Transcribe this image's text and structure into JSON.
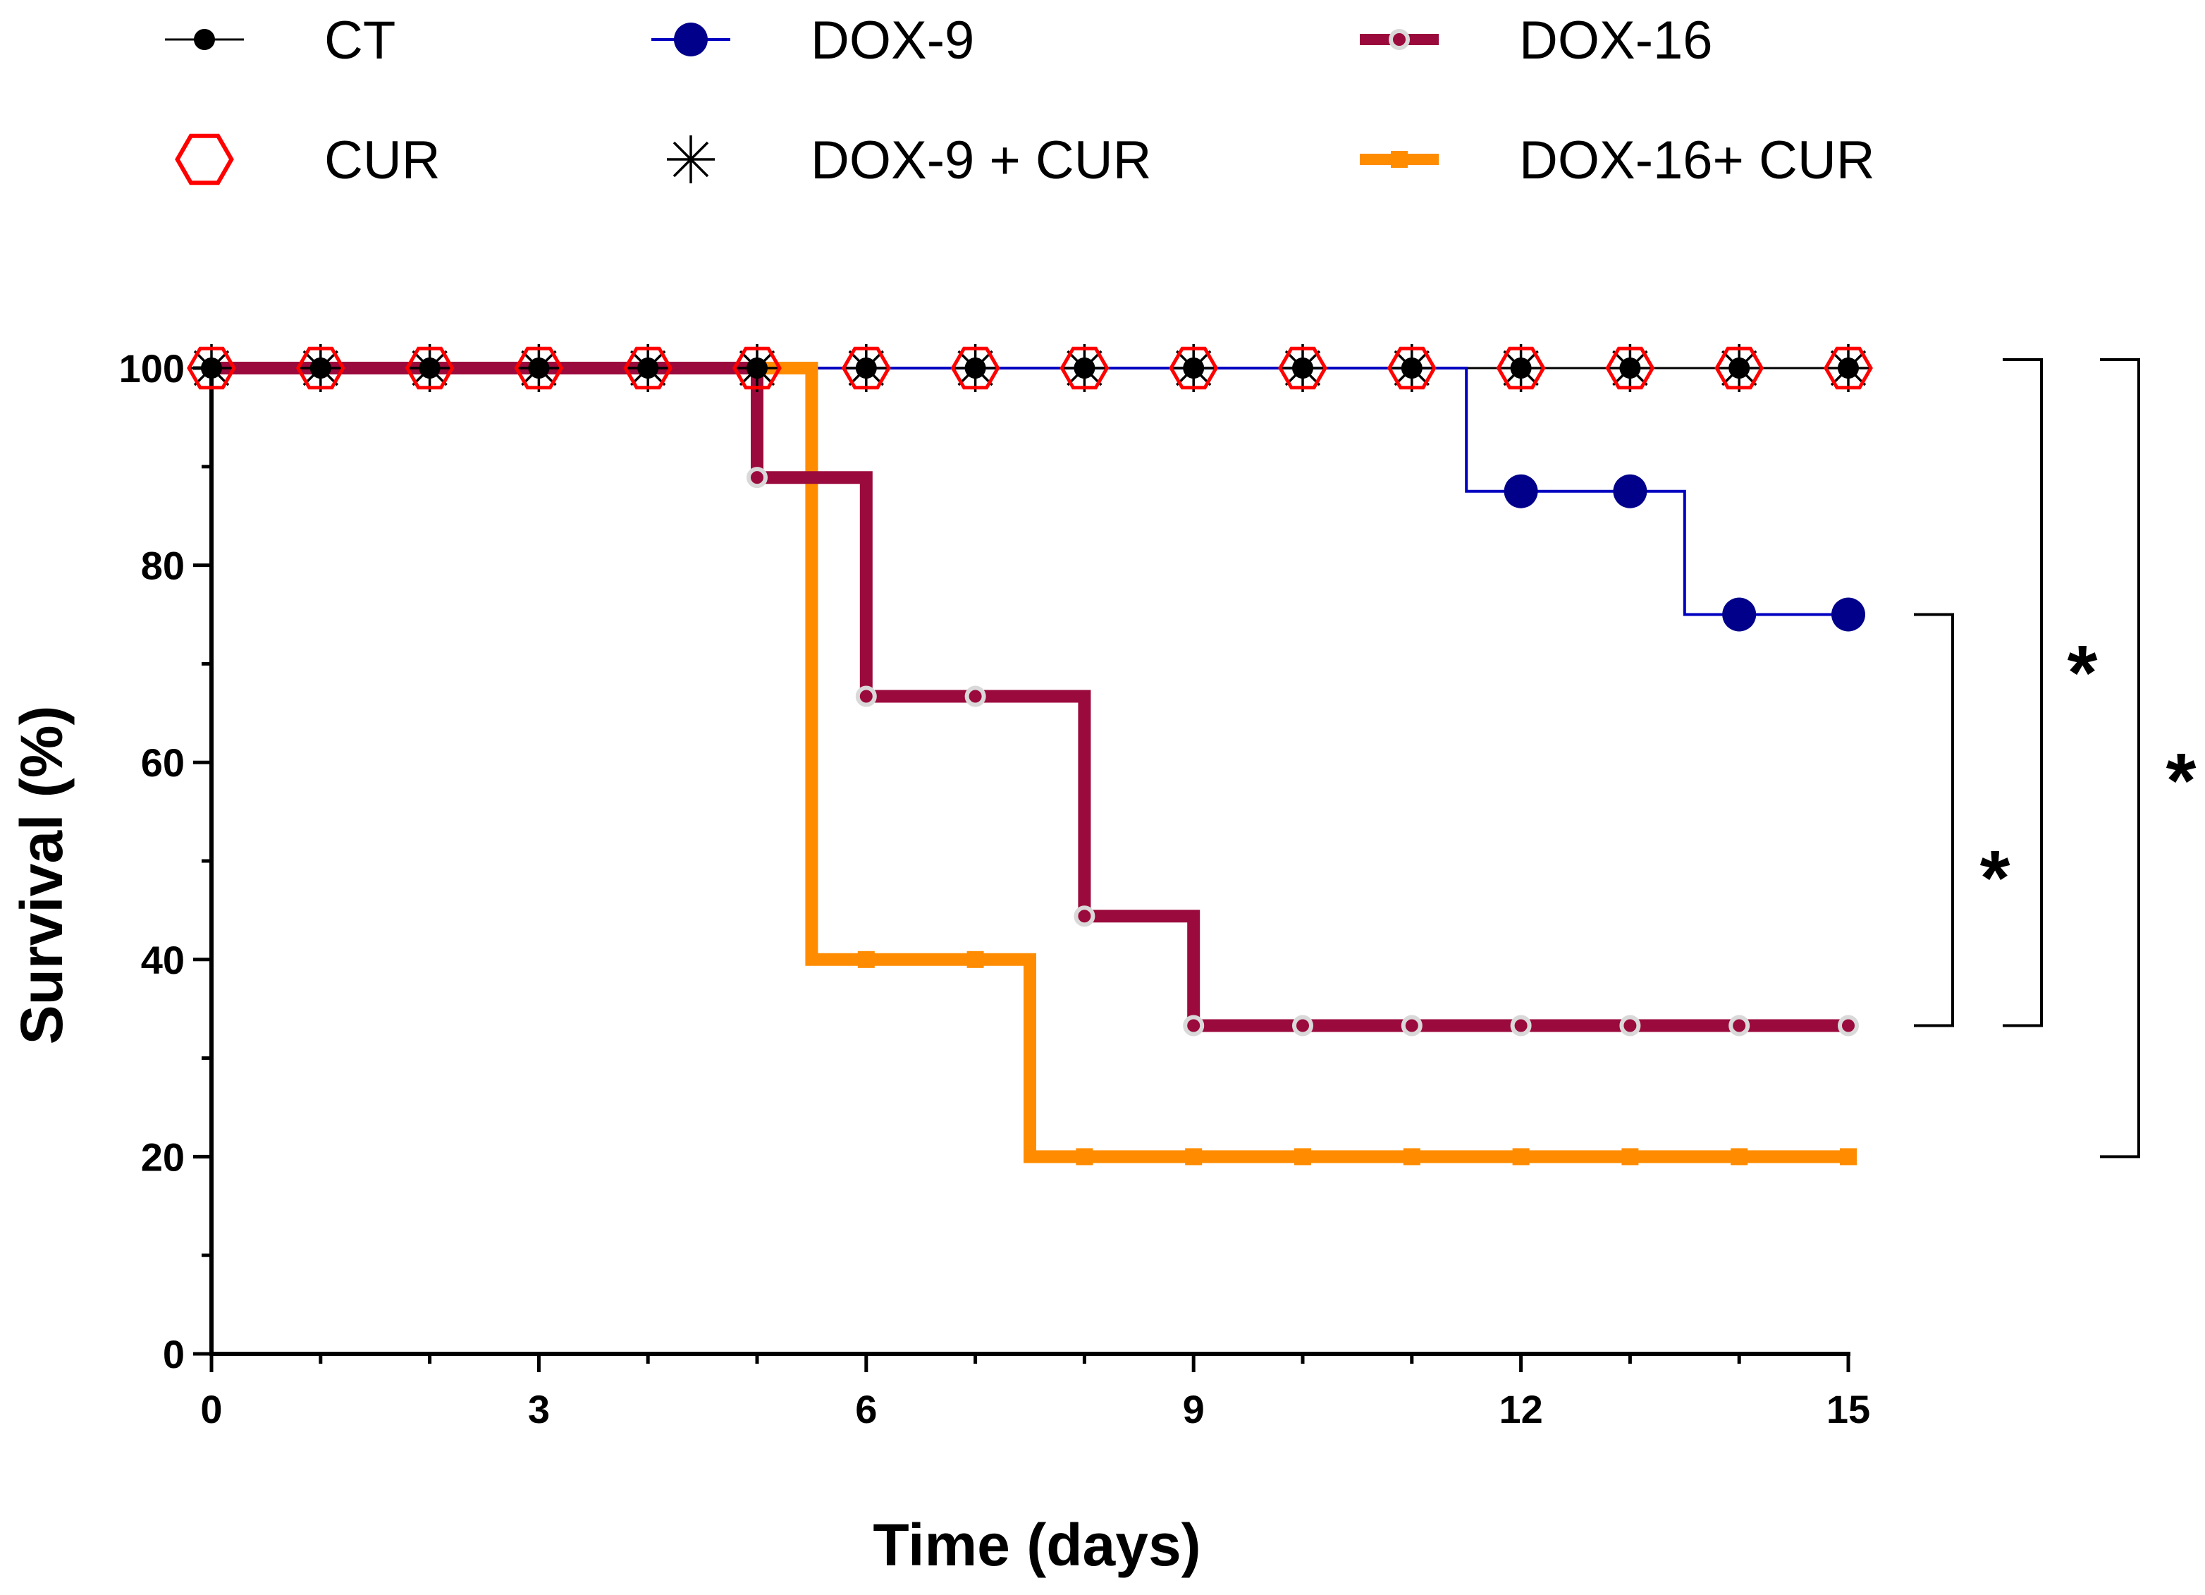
{
  "chart_data": {
    "type": "line",
    "subtype": "kaplan-meier-survival",
    "title": "",
    "xlabel": "Time (days)",
    "ylabel": "Survival (%)",
    "xlim": [
      0,
      15
    ],
    "ylim": [
      0,
      100
    ],
    "x_ticks": [
      0,
      3,
      6,
      9,
      12,
      15
    ],
    "y_ticks": [
      0,
      20,
      40,
      60,
      80,
      100
    ],
    "grid": false,
    "legend_position": "top",
    "series": [
      {
        "name": "CT",
        "color": "#000000",
        "marker": "filled-circle",
        "steps": [
          [
            0,
            100
          ],
          [
            15,
            100
          ]
        ],
        "marker_points": [
          [
            0,
            100
          ],
          [
            1,
            100
          ],
          [
            2,
            100
          ],
          [
            3,
            100
          ],
          [
            4,
            100
          ],
          [
            5,
            100
          ],
          [
            6,
            100
          ],
          [
            7,
            100
          ],
          [
            8,
            100
          ],
          [
            9,
            100
          ],
          [
            10,
            100
          ],
          [
            11,
            100
          ],
          [
            12,
            100
          ],
          [
            13,
            100
          ],
          [
            14,
            100
          ],
          [
            15,
            100
          ]
        ]
      },
      {
        "name": "DOX-9",
        "color": "#00008b",
        "marker": "large-filled-circle",
        "steps": [
          [
            0,
            100
          ],
          [
            11.5,
            100
          ],
          [
            11.5,
            87.5
          ],
          [
            13.5,
            87.5
          ],
          [
            13.5,
            75
          ],
          [
            15,
            75
          ]
        ],
        "marker_points": [
          [
            12,
            87.5
          ],
          [
            13,
            87.5
          ],
          [
            14,
            75
          ],
          [
            15,
            75
          ]
        ]
      },
      {
        "name": "DOX-16",
        "color": "#9b0a3c",
        "marker": "open-dot",
        "steps": [
          [
            0,
            100
          ],
          [
            5,
            100
          ],
          [
            5,
            88.9
          ],
          [
            6,
            88.9
          ],
          [
            6,
            66.7
          ],
          [
            8,
            66.7
          ],
          [
            8,
            44.4
          ],
          [
            9,
            44.4
          ],
          [
            9,
            33.3
          ],
          [
            15,
            33.3
          ]
        ],
        "marker_points": [
          [
            5,
            88.9
          ],
          [
            6,
            66.7
          ],
          [
            7,
            66.7
          ],
          [
            8,
            44.4
          ],
          [
            9,
            33.3
          ],
          [
            10,
            33.3
          ],
          [
            11,
            33.3
          ],
          [
            12,
            33.3
          ],
          [
            13,
            33.3
          ],
          [
            14,
            33.3
          ],
          [
            15,
            33.3
          ]
        ]
      },
      {
        "name": "CUR",
        "color": "#ff0000",
        "marker": "open-hexagon",
        "steps": [
          [
            0,
            100
          ],
          [
            15,
            100
          ]
        ],
        "marker_points": [
          [
            0,
            100
          ],
          [
            1,
            100
          ],
          [
            2,
            100
          ],
          [
            3,
            100
          ],
          [
            4,
            100
          ],
          [
            5,
            100
          ],
          [
            6,
            100
          ],
          [
            7,
            100
          ],
          [
            8,
            100
          ],
          [
            9,
            100
          ],
          [
            10,
            100
          ],
          [
            11,
            100
          ],
          [
            12,
            100
          ],
          [
            13,
            100
          ],
          [
            14,
            100
          ],
          [
            15,
            100
          ]
        ]
      },
      {
        "name": "DOX-9 + CUR",
        "color": "#000000",
        "marker": "asterisk",
        "steps": [
          [
            0,
            100
          ],
          [
            15,
            100
          ]
        ],
        "marker_points": [
          [
            0,
            100
          ],
          [
            1,
            100
          ],
          [
            2,
            100
          ],
          [
            3,
            100
          ],
          [
            4,
            100
          ],
          [
            5,
            100
          ],
          [
            6,
            100
          ],
          [
            7,
            100
          ],
          [
            8,
            100
          ],
          [
            9,
            100
          ],
          [
            10,
            100
          ],
          [
            11,
            100
          ],
          [
            12,
            100
          ],
          [
            13,
            100
          ],
          [
            14,
            100
          ],
          [
            15,
            100
          ]
        ]
      },
      {
        "name": "DOX-16+ CUR",
        "color": "#ff8c00",
        "marker": "filled-square",
        "steps": [
          [
            0,
            100
          ],
          [
            5.5,
            100
          ],
          [
            5.5,
            40
          ],
          [
            7.5,
            40
          ],
          [
            7.5,
            20
          ],
          [
            15,
            20
          ]
        ],
        "marker_points": [
          [
            6,
            40
          ],
          [
            7,
            40
          ],
          [
            8,
            20
          ],
          [
            9,
            20
          ],
          [
            10,
            20
          ],
          [
            11,
            20
          ],
          [
            12,
            20
          ],
          [
            13,
            20
          ],
          [
            14,
            20
          ],
          [
            15,
            20
          ]
        ]
      }
    ],
    "annotations": [
      {
        "text": "*",
        "comparison": "DOX-9 vs DOX-16",
        "y_range": [
          33.3,
          75
        ]
      },
      {
        "text": "*",
        "comparison": "CT vs DOX-16",
        "y_range": [
          33.3,
          100
        ]
      },
      {
        "text": "*",
        "comparison": "CT vs DOX-16+ CUR",
        "y_range": [
          20,
          100
        ]
      }
    ]
  }
}
